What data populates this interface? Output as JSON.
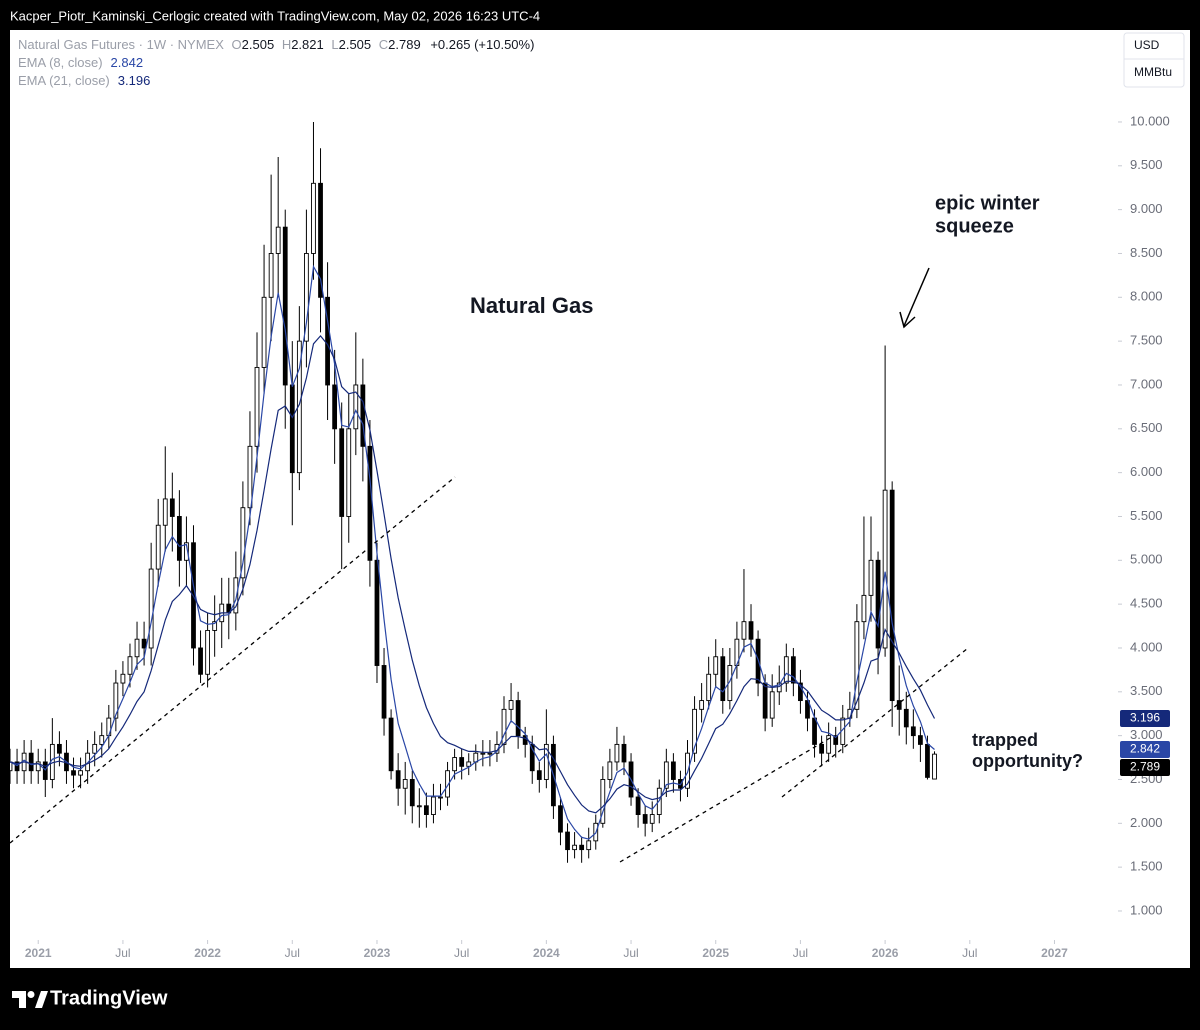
{
  "header": "Kacper_Piotr_Kaminski_Cerlogic created with TradingView.com, May 02, 2026 16:23 UTC-4",
  "footer": {
    "brand": "TradingView"
  },
  "chart_data": {
    "type": "candlestick",
    "symbol": "Natural Gas Futures · 1W · NYMEX",
    "ohlc_labels": [
      "O",
      "H",
      "L",
      "C"
    ],
    "change_label": "+0.265 (+10.50%)",
    "currency": "USD",
    "unit": "MMBtu",
    "title": "Natural Gas",
    "annotations": [
      [
        "epic winter",
        "squeeze"
      ],
      [
        "trapped",
        "opportunity?"
      ]
    ],
    "up_color": "#ffffff",
    "down_color": "#000000",
    "open": [
      2.6,
      2.7,
      2.6,
      2.8,
      2.6,
      2.7,
      2.5,
      2.9,
      2.8,
      2.6,
      2.55,
      2.6,
      2.8,
      2.9,
      3.0,
      3.2,
      3.6,
      3.7,
      3.9,
      4.1,
      4.0,
      4.9,
      5.4,
      5.7,
      5.5,
      5.0,
      5.2,
      4.0,
      3.7,
      4.2,
      4.3,
      4.5,
      4.4,
      4.8,
      5.6,
      6.3,
      7.2,
      8.0,
      8.5,
      8.8,
      7.0,
      6.0,
      7.5,
      8.5,
      9.3,
      8.0,
      7.0,
      6.5,
      5.5,
      6.5,
      7.0,
      6.3,
      5.0,
      3.8,
      3.2,
      2.6,
      2.4,
      2.5,
      2.2,
      2.2,
      2.1,
      2.3,
      2.3,
      2.6,
      2.75,
      2.65,
      2.7,
      2.8,
      2.8,
      2.8,
      2.9,
      3.3,
      3.4,
      3.0,
      2.9,
      2.6,
      2.5,
      2.9,
      2.2,
      1.9,
      1.7,
      1.75,
      1.7,
      1.8,
      2.0,
      2.5,
      2.7,
      2.9,
      2.7,
      2.3,
      2.1,
      2.0,
      2.1,
      2.4,
      2.7,
      2.5,
      2.4,
      2.8,
      3.3,
      3.4,
      3.7,
      3.9,
      3.4,
      3.8,
      4.1,
      4.3,
      4.1,
      3.6,
      3.2,
      3.5,
      3.6,
      3.9,
      3.6,
      3.4,
      3.2,
      2.9,
      2.8,
      3.0,
      2.9,
      3.2,
      3.3,
      4.3,
      4.6,
      5.0,
      4.0,
      5.8,
      3.4,
      3.3,
      3.1,
      3.0,
      2.9,
      2.505
    ],
    "high": [
      2.85,
      2.85,
      2.95,
      2.95,
      2.85,
      2.85,
      3.2,
      3.05,
      2.95,
      2.75,
      2.75,
      2.95,
      3.05,
      3.15,
      3.35,
      3.75,
      3.85,
      4.05,
      4.3,
      4.3,
      5.2,
      5.7,
      6.3,
      6.0,
      5.8,
      5.5,
      5.4,
      4.2,
      4.4,
      4.6,
      4.8,
      4.8,
      5.1,
      5.9,
      6.7,
      7.6,
      8.6,
      9.4,
      9.6,
      9.0,
      7.5,
      7.9,
      9.0,
      10.0,
      9.7,
      8.4,
      7.4,
      6.8,
      6.9,
      7.6,
      7.3,
      6.6,
      5.2,
      4.0,
      3.3,
      2.8,
      2.7,
      2.6,
      2.4,
      2.35,
      2.45,
      2.45,
      2.7,
      2.85,
      2.85,
      2.8,
      2.9,
      2.95,
      2.95,
      3.05,
      3.45,
      3.6,
      3.5,
      3.1,
      3.0,
      2.7,
      3.3,
      3.0,
      2.3,
      2.0,
      1.9,
      1.85,
      1.95,
      2.1,
      2.65,
      2.85,
      3.1,
      3.0,
      2.8,
      2.4,
      2.2,
      2.25,
      2.5,
      2.85,
      2.8,
      2.6,
      2.95,
      3.45,
      3.6,
      3.9,
      4.1,
      4.0,
      4.0,
      4.3,
      4.9,
      4.5,
      4.2,
      3.7,
      3.7,
      3.8,
      4.05,
      4.0,
      3.75,
      3.5,
      3.3,
      3.0,
      3.15,
      3.1,
      3.35,
      3.5,
      4.5,
      5.5,
      5.5,
      5.1,
      7.45,
      5.9,
      3.8,
      3.5,
      3.3,
      3.1,
      3.0,
      2.821
    ],
    "low": [
      2.45,
      2.45,
      2.45,
      2.45,
      2.45,
      2.3,
      2.4,
      2.65,
      2.45,
      2.4,
      2.4,
      2.45,
      2.65,
      2.75,
      2.85,
      3.05,
      3.45,
      3.55,
      3.75,
      3.8,
      3.8,
      4.7,
      5.1,
      5.1,
      4.7,
      4.7,
      3.8,
      3.6,
      3.55,
      3.9,
      4.0,
      4.1,
      4.2,
      4.6,
      5.4,
      6.0,
      6.9,
      7.5,
      8.0,
      6.5,
      5.4,
      5.8,
      7.2,
      8.2,
      7.6,
      6.6,
      6.1,
      4.9,
      5.2,
      6.2,
      5.9,
      4.7,
      3.6,
      3.0,
      2.5,
      2.2,
      2.1,
      2.0,
      1.95,
      1.95,
      2.0,
      2.15,
      2.2,
      2.5,
      2.5,
      2.55,
      2.6,
      2.65,
      2.65,
      2.7,
      2.8,
      3.15,
      2.85,
      2.75,
      2.45,
      2.35,
      2.4,
      2.05,
      1.75,
      1.55,
      1.6,
      1.55,
      1.6,
      1.7,
      1.95,
      2.4,
      2.6,
      2.55,
      2.2,
      1.95,
      1.85,
      1.9,
      2.0,
      2.3,
      2.35,
      2.25,
      2.3,
      2.7,
      3.15,
      3.3,
      3.55,
      3.25,
      3.3,
      3.65,
      3.95,
      3.9,
      3.45,
      3.05,
      3.1,
      3.35,
      3.5,
      3.45,
      3.25,
      3.05,
      2.75,
      2.65,
      2.7,
      2.75,
      2.8,
      3.1,
      3.2,
      4.1,
      4.3,
      3.7,
      3.9,
      3.1,
      3.0,
      2.9,
      2.85,
      2.7,
      2.5,
      2.505
    ],
    "close": [
      2.7,
      2.6,
      2.8,
      2.6,
      2.7,
      2.5,
      2.9,
      2.8,
      2.6,
      2.55,
      2.6,
      2.8,
      2.9,
      3.0,
      3.2,
      3.6,
      3.7,
      3.9,
      4.1,
      4.0,
      4.9,
      5.4,
      5.7,
      5.5,
      5.0,
      5.2,
      4.0,
      3.7,
      4.2,
      4.3,
      4.5,
      4.4,
      4.8,
      5.6,
      6.3,
      7.2,
      8.0,
      8.5,
      8.8,
      7.0,
      6.0,
      7.5,
      8.5,
      9.3,
      8.0,
      7.0,
      6.5,
      5.5,
      6.5,
      7.0,
      6.3,
      5.0,
      3.8,
      3.2,
      2.6,
      2.4,
      2.5,
      2.2,
      2.2,
      2.1,
      2.3,
      2.3,
      2.6,
      2.75,
      2.65,
      2.7,
      2.8,
      2.8,
      2.8,
      2.9,
      3.3,
      3.4,
      3.0,
      2.9,
      2.6,
      2.5,
      2.9,
      2.2,
      1.9,
      1.7,
      1.75,
      1.7,
      1.8,
      2.0,
      2.5,
      2.7,
      2.9,
      2.7,
      2.3,
      2.1,
      2.0,
      2.1,
      2.4,
      2.7,
      2.5,
      2.4,
      2.8,
      3.3,
      3.4,
      3.7,
      3.9,
      3.4,
      3.8,
      4.1,
      4.3,
      4.1,
      3.6,
      3.2,
      3.5,
      3.6,
      3.9,
      3.6,
      3.4,
      3.2,
      2.9,
      2.8,
      3.0,
      2.9,
      3.2,
      3.3,
      4.3,
      4.6,
      5.0,
      4.0,
      5.8,
      3.4,
      3.3,
      3.1,
      3.0,
      2.9,
      2.524,
      2.789
    ],
    "series": [
      {
        "name": "EMA (8, close)",
        "color": "#2a47a6",
        "values": [
          2.7,
          2.66,
          2.72,
          2.67,
          2.68,
          2.61,
          2.73,
          2.76,
          2.7,
          2.64,
          2.62,
          2.69,
          2.78,
          2.87,
          3.0,
          3.24,
          3.42,
          3.61,
          3.81,
          3.89,
          4.29,
          4.73,
          5.12,
          5.27,
          5.16,
          5.18,
          4.71,
          4.31,
          4.27,
          4.28,
          4.37,
          4.38,
          4.55,
          4.97,
          5.5,
          6.18,
          6.91,
          7.55,
          8.05,
          7.63,
          6.98,
          7.19,
          7.71,
          8.35,
          8.21,
          7.73,
          7.24,
          6.54,
          6.52,
          6.71,
          6.55,
          5.93,
          5.08,
          4.33,
          3.64,
          3.14,
          2.88,
          2.61,
          2.45,
          2.31,
          2.31,
          2.31,
          2.43,
          2.56,
          2.6,
          2.64,
          2.7,
          2.74,
          2.76,
          2.82,
          3.01,
          3.17,
          3.1,
          3.02,
          2.85,
          2.71,
          2.79,
          2.55,
          2.29,
          2.05,
          1.93,
          1.84,
          1.82,
          1.89,
          2.13,
          2.36,
          2.58,
          2.63,
          2.5,
          2.34,
          2.2,
          2.16,
          2.26,
          2.44,
          2.46,
          2.44,
          2.58,
          2.87,
          3.08,
          3.33,
          3.56,
          3.5,
          3.62,
          3.81,
          4.01,
          4.05,
          3.87,
          3.6,
          3.56,
          3.58,
          3.71,
          3.67,
          3.56,
          3.42,
          3.21,
          3.05,
          3.03,
          2.98,
          3.07,
          3.16,
          3.62,
          4.01,
          4.41,
          4.25,
          4.87,
          4.28,
          3.89,
          3.57,
          3.34,
          3.16,
          2.91,
          2.842
        ]
      },
      {
        "name": "EMA (21, close)",
        "color": "#15297a",
        "values": [
          2.7,
          2.68,
          2.7,
          2.68,
          2.68,
          2.65,
          2.69,
          2.71,
          2.69,
          2.66,
          2.65,
          2.68,
          2.72,
          2.77,
          2.85,
          2.98,
          3.1,
          3.24,
          3.39,
          3.5,
          3.74,
          4.03,
          4.32,
          4.53,
          4.61,
          4.71,
          4.59,
          4.44,
          4.4,
          4.38,
          4.4,
          4.4,
          4.47,
          4.67,
          4.95,
          5.34,
          5.8,
          6.27,
          6.71,
          6.76,
          6.63,
          6.78,
          7.08,
          7.47,
          7.56,
          7.46,
          7.29,
          6.98,
          6.9,
          6.92,
          6.81,
          6.49,
          6.02,
          5.53,
          5.02,
          4.57,
          4.21,
          3.86,
          3.57,
          3.32,
          3.14,
          2.99,
          2.92,
          2.89,
          2.85,
          2.82,
          2.82,
          2.81,
          2.81,
          2.83,
          2.91,
          2.99,
          2.99,
          2.97,
          2.91,
          2.84,
          2.85,
          2.74,
          2.59,
          2.44,
          2.32,
          2.21,
          2.14,
          2.12,
          2.19,
          2.28,
          2.39,
          2.44,
          2.42,
          2.36,
          2.3,
          2.27,
          2.29,
          2.36,
          2.38,
          2.38,
          2.45,
          2.6,
          2.74,
          2.91,
          3.08,
          3.13,
          3.25,
          3.4,
          3.56,
          3.65,
          3.64,
          3.56,
          3.55,
          3.56,
          3.62,
          3.62,
          3.58,
          3.51,
          3.4,
          3.29,
          3.24,
          3.18,
          3.18,
          3.2,
          3.39,
          3.6,
          3.85,
          3.88,
          4.21,
          4.07,
          3.94,
          3.79,
          3.65,
          3.52,
          3.35,
          3.196
        ]
      }
    ],
    "xlim": [
      0,
      157
    ],
    "xticks": [
      {
        "value": 4,
        "label": "2021"
      },
      {
        "value": 16,
        "label": "Jul"
      },
      {
        "value": 28,
        "label": "2022"
      },
      {
        "value": 40,
        "label": "Jul"
      },
      {
        "value": 52,
        "label": "2023"
      },
      {
        "value": 64,
        "label": "Jul"
      },
      {
        "value": 76,
        "label": "2024"
      },
      {
        "value": 88,
        "label": "Jul"
      },
      {
        "value": 100,
        "label": "2025"
      },
      {
        "value": 112,
        "label": "Jul"
      },
      {
        "value": 124,
        "label": "2026"
      },
      {
        "value": 136,
        "label": "Jul"
      },
      {
        "value": 148,
        "label": "2027"
      }
    ],
    "ylim": [
      0.669,
      11.049
    ],
    "yticks": [
      {
        "value": 1,
        "label": "1.000"
      },
      {
        "value": 1.5,
        "label": "1.500"
      },
      {
        "value": 2,
        "label": "2.000"
      },
      {
        "value": 2.5,
        "label": "2.500"
      },
      {
        "value": 3,
        "label": "3.000"
      },
      {
        "value": 3.5,
        "label": "3.500"
      },
      {
        "value": 4,
        "label": "4.000"
      },
      {
        "value": 4.5,
        "label": "4.500"
      },
      {
        "value": 5,
        "label": "5.000"
      },
      {
        "value": 5.5,
        "label": "5.500"
      },
      {
        "value": 6,
        "label": "6.000"
      },
      {
        "value": 6.5,
        "label": "6.500"
      },
      {
        "value": 7,
        "label": "7.000"
      },
      {
        "value": 7.5,
        "label": "7.500"
      },
      {
        "value": 8,
        "label": "8.000"
      },
      {
        "value": 8.5,
        "label": "8.500"
      },
      {
        "value": 9,
        "label": "9.000"
      },
      {
        "value": 9.5,
        "label": "9.500"
      },
      {
        "value": 10,
        "label": "10.000"
      }
    ]
  }
}
